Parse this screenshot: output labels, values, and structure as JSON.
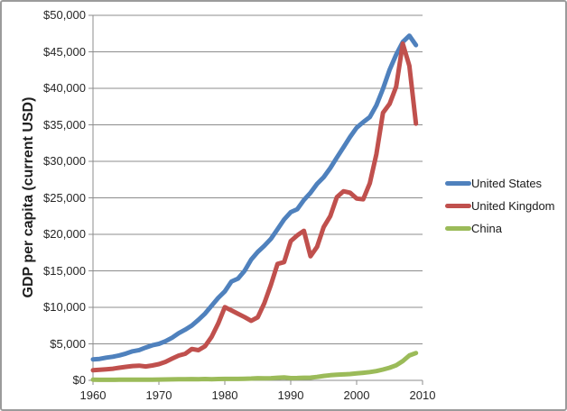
{
  "chart_data": {
    "type": "line",
    "title": "",
    "ylabel": "GDP per capita (current USD)",
    "xlabel": "",
    "xlim": [
      1960,
      2010
    ],
    "ylim": [
      0,
      50000
    ],
    "y_step": 5000,
    "x_start": 1960,
    "x_end": 2009,
    "grid": true,
    "legend_position": "right",
    "x_tick_labels": [
      "1960",
      "1970",
      "1980",
      "1990",
      "2000",
      "2010"
    ],
    "y_tick_labels": [
      "$0",
      "$5,000",
      "$10,000",
      "$15,000",
      "$20,000",
      "$25,000",
      "$30,000",
      "$35,000",
      "$40,000",
      "$45,000",
      "$50,000"
    ],
    "series": [
      {
        "name": "United States",
        "color": "#4F81BD",
        "values": [
          2881,
          2934,
          3107,
          3232,
          3423,
          3665,
          3972,
          4152,
          4491,
          4803,
          4998,
          5360,
          5836,
          6461,
          6948,
          7517,
          8297,
          9142,
          10225,
          11301,
          12180,
          13526,
          13933,
          15000,
          16539,
          17589,
          18427,
          19394,
          20703,
          22039,
          23038,
          23443,
          24700,
          25694,
          26908,
          27827,
          29076,
          30522,
          31913,
          33332,
          34606,
          35373,
          36066,
          37684,
          39935,
          42534,
          44623,
          46349,
          47209,
          45917
        ]
      },
      {
        "name": "United Kingdom",
        "color": "#C0504D",
        "values": [
          1380,
          1452,
          1513,
          1592,
          1729,
          1850,
          1957,
          2014,
          1896,
          2031,
          2225,
          2530,
          2976,
          3396,
          3642,
          4299,
          4135,
          4675,
          5966,
          7788,
          10026,
          9579,
          9120,
          8669,
          8165,
          8637,
          10581,
          13095,
          15946,
          16200,
          19080,
          19870,
          20487,
          17000,
          18300,
          21000,
          22500,
          25100,
          25900,
          25700,
          24900,
          24800,
          27000,
          31000,
          36656,
          37859,
          40240,
          46122,
          43089,
          35165
        ]
      },
      {
        "name": "China",
        "color": "#9BBB59",
        "values": [
          92,
          76,
          70,
          74,
          84,
          97,
          104,
          96,
          91,
          100,
          112,
          118,
          130,
          155,
          158,
          176,
          163,
          182,
          155,
          182,
          193,
          195,
          201,
          223,
          248,
          292,
          279,
          297,
          364,
          400,
          314,
          327,
          362,
          374,
          469,
          604,
          699,
          770,
          817,
          861,
          946,
          1038,
          1132,
          1270,
          1486,
          1726,
          2064,
          2645,
          3404,
          3744
        ]
      }
    ]
  },
  "colors": {
    "background": "#FFFFFF",
    "border": "#9B9B9B",
    "gridline": "#8C8C8C",
    "axis": "#8C8C8C",
    "tick_text": "#262626",
    "title_text": "#1F1F1F"
  }
}
